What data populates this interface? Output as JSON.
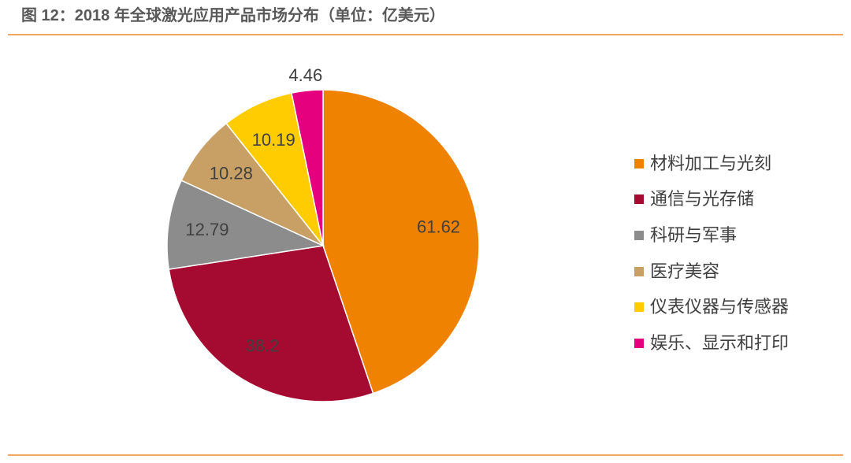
{
  "chart_data": {
    "type": "pie",
    "title": "图 12：2018 年全球激光应用产品市场分布（单位：亿美元）",
    "categories": [
      "材料加工与光刻",
      "通信与光存储",
      "科研与军事",
      "医疗美容",
      "仪表仪器与传感器",
      "娱乐、显示和打印"
    ],
    "values": [
      61.62,
      38.2,
      12.79,
      10.28,
      10.19,
      4.46
    ],
    "colors": [
      "#EF8200",
      "#A50A30",
      "#8C8C8C",
      "#C8A065",
      "#FECC00",
      "#E5007E"
    ],
    "legend_position": "right"
  }
}
